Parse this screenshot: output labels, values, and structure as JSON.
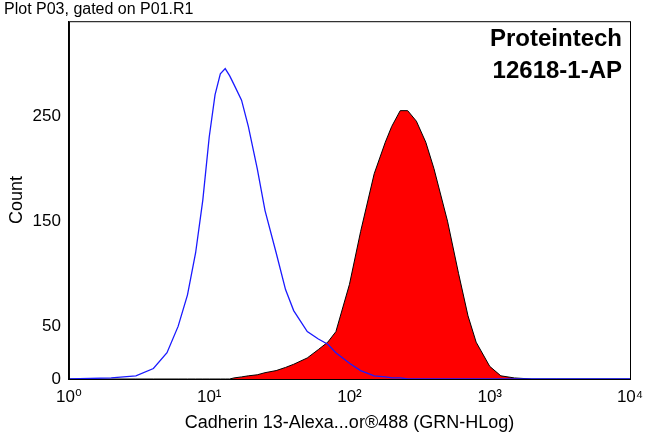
{
  "chart_data": {
    "type": "line",
    "title": "Plot P03, gated on P01.R1",
    "annotations": [
      "Proteintech",
      "12618-1-AP"
    ],
    "x_label": "Cadherin 13-Alexa...or®488 (GRN-HLog)",
    "y_label": "Count",
    "log": "x",
    "grid": false,
    "x": [
      1,
      2,
      3,
      4,
      5,
      6,
      7,
      8,
      9,
      10,
      11,
      12,
      13,
      14,
      15,
      17,
      19,
      22,
      25,
      30,
      35,
      40,
      50,
      60,
      70,
      80,
      100,
      120,
      150,
      180,
      200,
      230,
      260,
      300,
      350,
      400,
      500,
      600,
      700,
      800,
      1000,
      1200,
      1500,
      2000,
      3000,
      10000
    ],
    "series": [
      {
        "color": "#1a1aff",
        "type": "line",
        "line_style": "solid",
        "marker": "none",
        "values": [
          0,
          1,
          3,
          10,
          25,
          50,
          80,
          120,
          170,
          230,
          270,
          290,
          295,
          288,
          280,
          265,
          240,
          200,
          160,
          120,
          85,
          65,
          45,
          38,
          33,
          25,
          15,
          8,
          3,
          2,
          1,
          1,
          0,
          0,
          0,
          0,
          0,
          0,
          0,
          0,
          0,
          0,
          0,
          0,
          0,
          0
        ]
      },
      {
        "color": "#ff0000",
        "type": "area",
        "line_style": "solid",
        "marker": "none",
        "values": [
          0,
          0,
          0,
          0,
          0,
          0,
          0,
          0,
          0,
          0,
          0,
          0,
          0,
          0,
          1,
          2,
          3,
          4,
          6,
          8,
          11,
          14,
          20,
          28,
          35,
          45,
          90,
          140,
          195,
          225,
          240,
          255,
          255,
          245,
          225,
          200,
          150,
          100,
          60,
          35,
          12,
          3,
          1,
          0,
          0,
          0
        ]
      }
    ],
    "xlim": [
      1,
      10000
    ],
    "xticks": [
      {
        "value": 1,
        "label": "10⁰"
      },
      {
        "value": 10,
        "label": "10¹"
      },
      {
        "value": 100,
        "label": "10²"
      },
      {
        "value": 1000,
        "label": "10³"
      },
      {
        "value": 10000,
        "label": "10⁴"
      }
    ],
    "ylim": [
      0,
      340
    ],
    "yticks": [
      0,
      50,
      150,
      250
    ]
  }
}
